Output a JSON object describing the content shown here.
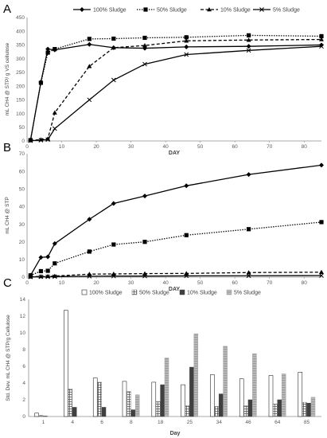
{
  "chart_data": [
    {
      "panel": "A",
      "type": "line",
      "xlabel": "DAY",
      "ylabel": "mL CH4 @ STP/ g VS cellulose",
      "xlim": [
        0,
        85
      ],
      "ylim": [
        0,
        450
      ],
      "xticks": [
        0,
        10,
        20,
        30,
        40,
        50,
        60,
        70,
        80
      ],
      "yticks": [
        0,
        50,
        100,
        150,
        200,
        250,
        300,
        350,
        400,
        450
      ],
      "grid": false,
      "legend": "top",
      "x": [
        1,
        4,
        6,
        8,
        18,
        25,
        34,
        46,
        64,
        85
      ],
      "series": [
        {
          "name": "100% Sludge",
          "marker": "diamond",
          "dash": "solid",
          "values": [
            3,
            215,
            335,
            332,
            352,
            340,
            338,
            343,
            345,
            350
          ]
        },
        {
          "name": "50% Sludge",
          "marker": "square",
          "dash": "dotted",
          "values": [
            3,
            212,
            322,
            335,
            372,
            373,
            376,
            378,
            385,
            382
          ]
        },
        {
          "name": "10% Sludge",
          "marker": "triangle",
          "dash": "dashed",
          "values": [
            2,
            5,
            8,
            103,
            272,
            340,
            348,
            365,
            368,
            370
          ]
        },
        {
          "name": "5% Sludge",
          "marker": "x",
          "dash": "solid",
          "values": [
            1,
            3,
            5,
            45,
            150,
            222,
            280,
            315,
            330,
            345
          ]
        }
      ]
    },
    {
      "panel": "B",
      "type": "line",
      "xlabel": "DAY",
      "ylabel": "mL CH4 @ STP",
      "xlim": [
        0,
        85
      ],
      "ylim": [
        0,
        70
      ],
      "xticks": [
        0,
        10,
        20,
        30,
        40,
        50,
        60,
        70,
        80
      ],
      "yticks": [
        0,
        10,
        20,
        30,
        40,
        50,
        60,
        70
      ],
      "grid": false,
      "x": [
        1,
        4,
        6,
        8,
        18,
        25,
        34,
        46,
        64,
        85
      ],
      "series": [
        {
          "name": "100% Sludge",
          "marker": "diamond",
          "dash": "solid",
          "values": [
            1,
            11.2,
            11.5,
            19,
            32.8,
            41.8,
            46,
            51.8,
            58.2,
            63.5
          ]
        },
        {
          "name": "50% Sludge",
          "marker": "square",
          "dash": "dotted",
          "values": [
            1,
            3.4,
            3.6,
            7.8,
            14.5,
            18.5,
            20,
            23.8,
            27.2,
            31.2
          ]
        },
        {
          "name": "10% Sludge",
          "marker": "triangle",
          "dash": "dashed",
          "values": [
            0.2,
            0.4,
            0.5,
            0.6,
            1.7,
            1.8,
            2,
            2.1,
            2.6,
            2.8
          ]
        },
        {
          "name": "5% Sludge",
          "marker": "x",
          "dash": "solid",
          "values": [
            0.1,
            0.2,
            0.2,
            0.3,
            0.5,
            0.6,
            0.6,
            0.7,
            0.8,
            0.9
          ]
        }
      ]
    },
    {
      "panel": "C",
      "type": "bar",
      "xlabel": "Day",
      "ylabel": "Std. Dev. mL CH4 @ STP/g Cellulose",
      "ylim": [
        0,
        14
      ],
      "yticks": [
        0,
        2,
        4,
        6,
        8,
        10,
        12,
        14
      ],
      "grid": false,
      "legend": "top",
      "categories": [
        "1",
        "4",
        "6",
        "8",
        "18",
        "25",
        "34",
        "46",
        "64",
        "85"
      ],
      "series": [
        {
          "name": "100% Sludge",
          "pattern": "white",
          "values": [
            0.4,
            12.7,
            4.6,
            4.2,
            4.1,
            3.8,
            5.0,
            4.5,
            4.9,
            5.3
          ]
        },
        {
          "name": "50% Sludge",
          "pattern": "grid",
          "values": [
            0.15,
            3.3,
            4.1,
            3.0,
            1.8,
            1.3,
            1.2,
            1.3,
            1.5,
            1.7
          ]
        },
        {
          "name": "10% Sludge",
          "pattern": "dark",
          "values": [
            0.05,
            1.1,
            1.1,
            0.8,
            3.8,
            5.9,
            2.7,
            2.0,
            2.0,
            1.6
          ]
        },
        {
          "name": "5% Sludge",
          "pattern": "stripe",
          "values": [
            0,
            0,
            0,
            2.6,
            7.0,
            9.9,
            8.4,
            7.5,
            5.1,
            2.3
          ]
        }
      ]
    }
  ],
  "panels": {
    "a": "A",
    "b": "B",
    "c": "C"
  }
}
